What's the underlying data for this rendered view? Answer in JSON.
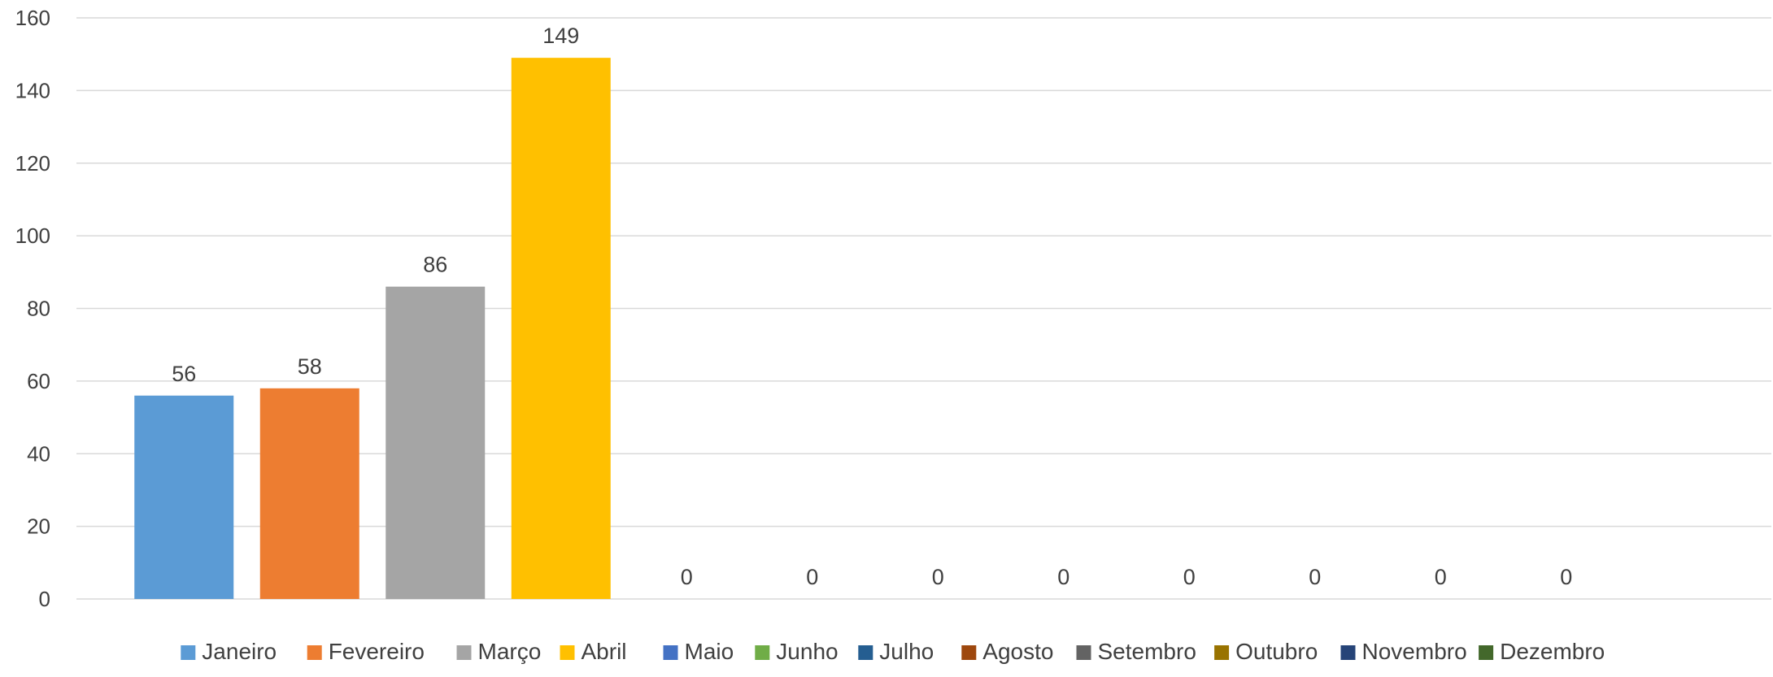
{
  "chart_data": {
    "type": "bar",
    "categories": [
      "Janeiro",
      "Fevereiro",
      "Março",
      "Abril",
      "Maio",
      "Junho",
      "Julho",
      "Agosto",
      "Setembro",
      "Outubro",
      "Novembro",
      "Dezembro"
    ],
    "series": [
      {
        "name": "Janeiro",
        "value": 56,
        "color": "#5B9BD5"
      },
      {
        "name": "Fevereiro",
        "value": 58,
        "color": "#ED7D31"
      },
      {
        "name": "Março",
        "value": 86,
        "color": "#A5A5A5"
      },
      {
        "name": "Abril",
        "value": 149,
        "color": "#FFC000"
      },
      {
        "name": "Maio",
        "value": 0,
        "color": "#4472C4"
      },
      {
        "name": "Junho",
        "value": 0,
        "color": "#70AD47"
      },
      {
        "name": "Julho",
        "value": 0,
        "color": "#255E91"
      },
      {
        "name": "Agosto",
        "value": 0,
        "color": "#9E480E"
      },
      {
        "name": "Setembro",
        "value": 0,
        "color": "#636363"
      },
      {
        "name": "Outubro",
        "value": 0,
        "color": "#997300"
      },
      {
        "name": "Novembro",
        "value": 0,
        "color": "#264478"
      },
      {
        "name": "Dezembro",
        "value": 0,
        "color": "#43682B"
      }
    ],
    "yticks": [
      "0",
      "20",
      "40",
      "60",
      "80",
      "100",
      "120",
      "140",
      "160"
    ],
    "ylim": [
      0,
      160
    ],
    "grid": true,
    "legend_position": "bottom",
    "title": "",
    "xlabel": "",
    "ylabel": ""
  }
}
